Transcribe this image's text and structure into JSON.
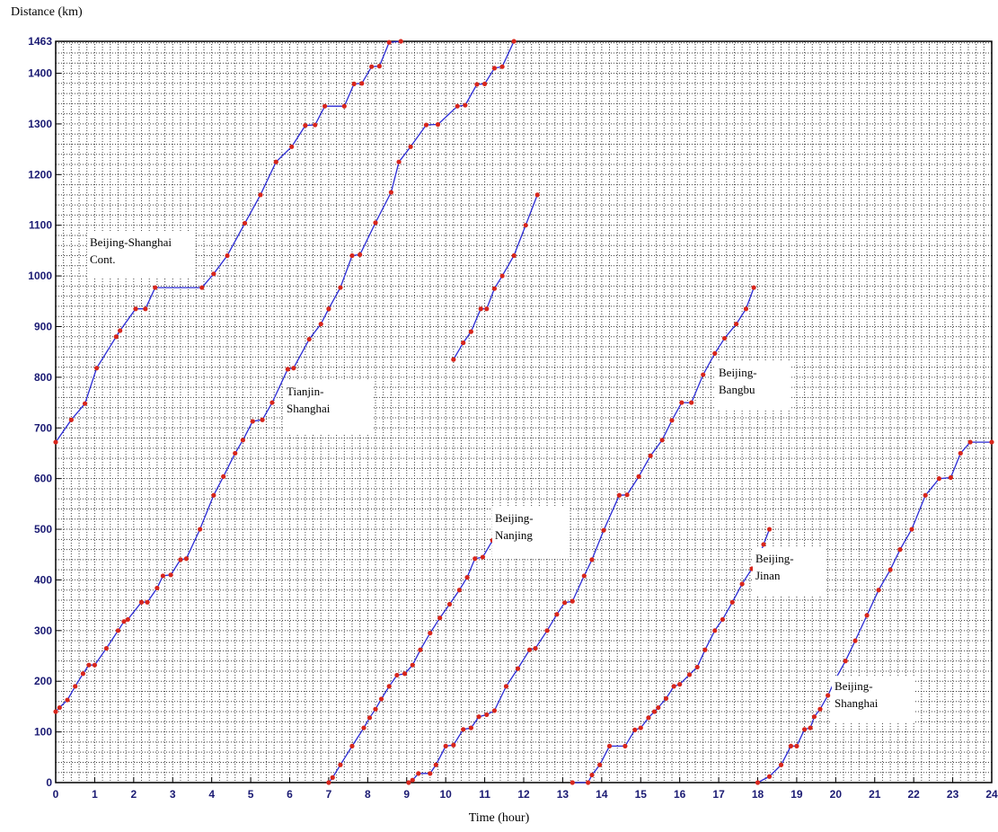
{
  "chart_data": {
    "type": "line",
    "xlabel": "Time (hour)",
    "ylabel": "Distance (km)",
    "xlim": [
      0,
      24
    ],
    "ylim": [
      0,
      1463
    ],
    "xticks": [
      "0",
      "1",
      "2",
      "3",
      "4",
      "5",
      "6",
      "7",
      "8",
      "9",
      "10",
      "11",
      "12",
      "13",
      "14",
      "15",
      "16",
      "17",
      "18",
      "19",
      "20",
      "21",
      "22",
      "23",
      "24"
    ],
    "yticks": [
      "0",
      "100",
      "200",
      "300",
      "400",
      "500",
      "600",
      "700",
      "800",
      "900",
      "1000",
      "1100",
      "1200",
      "1300",
      "1400",
      "1463"
    ],
    "grid": true,
    "line_color": "#2a2ad6",
    "marker_color": "#d8261c",
    "series": [
      {
        "points": [
          [
            0,
            140
          ],
          [
            0.1,
            148
          ],
          [
            0.3,
            163
          ],
          [
            0.5,
            190
          ],
          [
            0.7,
            215
          ],
          [
            0.85,
            232
          ],
          [
            1,
            232
          ],
          [
            1.3,
            265
          ],
          [
            1.6,
            300
          ],
          [
            1.75,
            318
          ],
          [
            1.85,
            322
          ],
          [
            2.2,
            356
          ],
          [
            2.35,
            356
          ],
          [
            2.6,
            384
          ],
          [
            2.75,
            408
          ],
          [
            2.95,
            410
          ],
          [
            3.2,
            440
          ],
          [
            3.35,
            442
          ],
          [
            3.7,
            500
          ],
          [
            4.05,
            567
          ],
          [
            4.3,
            604
          ],
          [
            4.6,
            650
          ],
          [
            4.8,
            676
          ],
          [
            5.05,
            713
          ],
          [
            5.3,
            716
          ],
          [
            5.55,
            750
          ],
          [
            5.95,
            816
          ],
          [
            6.1,
            818
          ],
          [
            6.5,
            875
          ],
          [
            6.8,
            905
          ],
          [
            7.0,
            935
          ],
          [
            7.3,
            977
          ],
          [
            7.6,
            1040
          ],
          [
            7.8,
            1042
          ],
          [
            8.2,
            1105
          ],
          [
            8.6,
            1165
          ],
          [
            8.8,
            1225
          ],
          [
            9.1,
            1255
          ],
          [
            9.5,
            1298
          ],
          [
            9.8,
            1299
          ],
          [
            10.3,
            1335
          ],
          [
            10.5,
            1337
          ],
          [
            10.8,
            1378
          ],
          [
            11.0,
            1379
          ],
          [
            11.25,
            1410
          ],
          [
            11.45,
            1413
          ],
          [
            11.75,
            1463
          ]
        ]
      },
      {
        "points": [
          [
            0,
            672
          ],
          [
            0.4,
            716
          ],
          [
            0.75,
            748
          ],
          [
            1.05,
            818
          ],
          [
            1.55,
            880
          ],
          [
            1.65,
            892
          ],
          [
            2.05,
            935
          ],
          [
            2.3,
            935
          ],
          [
            2.55,
            977
          ],
          [
            3.75,
            977
          ],
          [
            4.05,
            1004
          ],
          [
            4.4,
            1040
          ],
          [
            4.85,
            1104
          ],
          [
            5.25,
            1160
          ],
          [
            5.65,
            1225
          ],
          [
            6.05,
            1255
          ],
          [
            6.4,
            1297
          ],
          [
            6.65,
            1298
          ],
          [
            6.9,
            1335
          ],
          [
            7.4,
            1335
          ],
          [
            7.65,
            1379
          ],
          [
            7.85,
            1380
          ],
          [
            8.1,
            1413
          ],
          [
            8.3,
            1414
          ],
          [
            8.55,
            1461
          ],
          [
            8.85,
            1463
          ]
        ]
      },
      {
        "points": [
          [
            7.0,
            0
          ],
          [
            7.1,
            10
          ],
          [
            7.3,
            35
          ],
          [
            7.6,
            72
          ],
          [
            7.9,
            108
          ],
          [
            8.05,
            128
          ],
          [
            8.2,
            145
          ],
          [
            8.35,
            165
          ],
          [
            8.55,
            190
          ],
          [
            8.75,
            212
          ],
          [
            8.95,
            215
          ],
          [
            9.15,
            232
          ],
          [
            9.35,
            262
          ],
          [
            9.6,
            295
          ],
          [
            9.85,
            325
          ],
          [
            10.1,
            352
          ],
          [
            10.35,
            380
          ],
          [
            10.55,
            405
          ],
          [
            10.75,
            442
          ],
          [
            10.95,
            445
          ],
          [
            11.2,
            478
          ],
          [
            11.4,
            500
          ]
        ]
      },
      {
        "points": [
          [
            9.05,
            0
          ],
          [
            9.15,
            5
          ],
          [
            9.3,
            18
          ],
          [
            9.6,
            18
          ],
          [
            9.75,
            35
          ],
          [
            10.0,
            72
          ],
          [
            10.2,
            74
          ],
          [
            10.45,
            105
          ],
          [
            10.65,
            108
          ],
          [
            10.85,
            130
          ],
          [
            11.05,
            134
          ],
          [
            11.25,
            142
          ],
          [
            11.55,
            190
          ],
          [
            11.85,
            225
          ],
          [
            12.15,
            262
          ],
          [
            12.3,
            265
          ],
          [
            12.6,
            300
          ],
          [
            12.85,
            332
          ],
          [
            13.05,
            355
          ],
          [
            13.25,
            358
          ],
          [
            13.55,
            408
          ],
          [
            13.75,
            440
          ],
          [
            14.05,
            498
          ],
          [
            14.45,
            567
          ],
          [
            14.65,
            568
          ],
          [
            14.95,
            604
          ],
          [
            15.25,
            645
          ],
          [
            15.55,
            676
          ],
          [
            15.8,
            715
          ],
          [
            16.05,
            750
          ],
          [
            16.3,
            750
          ],
          [
            16.6,
            805
          ],
          [
            16.9,
            847
          ],
          [
            17.15,
            877
          ],
          [
            17.45,
            905
          ],
          [
            17.7,
            935
          ],
          [
            17.9,
            977
          ]
        ]
      },
      {
        "points": [
          [
            13.25,
            0
          ],
          [
            13.65,
            0
          ],
          [
            13.75,
            15
          ],
          [
            13.95,
            35
          ],
          [
            14.2,
            72
          ],
          [
            14.6,
            72
          ],
          [
            14.85,
            104
          ],
          [
            15.0,
            108
          ],
          [
            15.2,
            128
          ],
          [
            15.35,
            140
          ],
          [
            15.45,
            148
          ],
          [
            15.65,
            166
          ],
          [
            15.85,
            190
          ],
          [
            16.0,
            194
          ],
          [
            16.25,
            213
          ],
          [
            16.45,
            228
          ],
          [
            16.65,
            262
          ],
          [
            16.9,
            300
          ],
          [
            17.1,
            322
          ],
          [
            17.35,
            356
          ],
          [
            17.6,
            392
          ],
          [
            17.85,
            422
          ],
          [
            18.0,
            440
          ],
          [
            18.15,
            470
          ],
          [
            18.3,
            500
          ]
        ]
      },
      {
        "points": [
          [
            18.0,
            0
          ],
          [
            18.3,
            12
          ],
          [
            18.6,
            35
          ],
          [
            18.85,
            72
          ],
          [
            19.0,
            72
          ],
          [
            19.2,
            105
          ],
          [
            19.35,
            108
          ],
          [
            19.45,
            130
          ],
          [
            19.6,
            145
          ],
          [
            19.8,
            172
          ],
          [
            20.0,
            205
          ],
          [
            20.25,
            240
          ],
          [
            20.5,
            280
          ],
          [
            20.8,
            330
          ],
          [
            21.1,
            380
          ],
          [
            21.4,
            420
          ],
          [
            21.65,
            460
          ],
          [
            21.95,
            500
          ],
          [
            22.3,
            567
          ],
          [
            22.65,
            600
          ],
          [
            22.95,
            602
          ],
          [
            23.2,
            650
          ],
          [
            23.45,
            672
          ],
          [
            24.0,
            672
          ]
        ]
      },
      {
        "points": [
          [
            10.2,
            835
          ],
          [
            10.45,
            868
          ],
          [
            10.65,
            890
          ],
          [
            10.9,
            935
          ],
          [
            11.05,
            935
          ],
          [
            11.25,
            975
          ],
          [
            11.45,
            1000
          ],
          [
            11.75,
            1040
          ],
          [
            12.05,
            1100
          ],
          [
            12.35,
            1160
          ]
        ]
      }
    ],
    "annotations": [
      {
        "label": "Beijing-Shanghai\nCont."
      },
      {
        "label": "Tianjin-\nShanghai"
      },
      {
        "label": "Beijing-\nBangbu"
      },
      {
        "label": "Beijing-\nNanjing"
      },
      {
        "label": "Beijing-\nJinan"
      },
      {
        "label": "Beijing-\nShanghai"
      }
    ]
  }
}
